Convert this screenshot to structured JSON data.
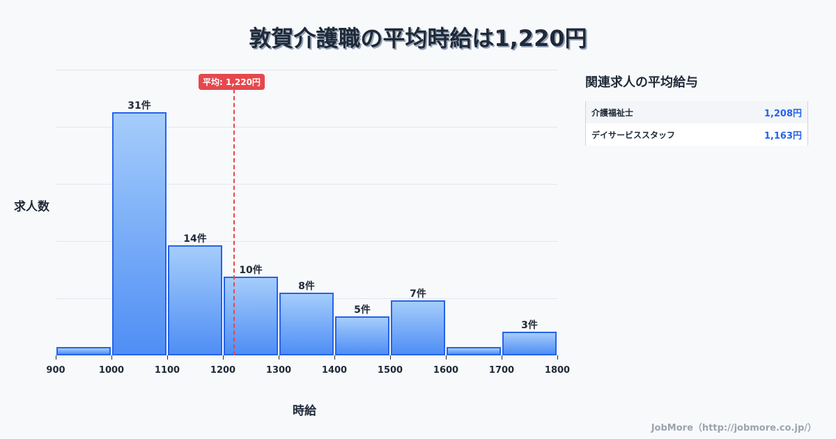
{
  "title": "敦賀介護職の平均時給は1,220円",
  "average_badge": "平均: 1,220円",
  "axis": {
    "ylabel": "求人数",
    "xlabel": "時給"
  },
  "side_panel": {
    "title": "関連求人の平均給与",
    "rows": [
      {
        "name": "介護福祉士",
        "value": "1,208円"
      },
      {
        "name": "デイサービススタッフ",
        "value": "1,163円"
      }
    ]
  },
  "footer": "JobMore（http://jobmore.co.jp/）",
  "colors": {
    "bar_border": "#2563eb",
    "bar_top": "#a5cdfb",
    "bar_bottom": "#4f8ef5",
    "average_line": "#e5484d",
    "text": "#1f2937",
    "link_value": "#2563eb"
  },
  "chart_data": {
    "type": "bar",
    "title": "敦賀介護職の平均時給は1,220円",
    "xlabel": "時給",
    "ylabel": "求人数",
    "x_ticks": [
      "900",
      "1000",
      "1100",
      "1200",
      "1300",
      "1400",
      "1500",
      "1600",
      "1700",
      "1800"
    ],
    "categories": [
      "900-1000",
      "1000-1100",
      "1100-1200",
      "1200-1300",
      "1300-1400",
      "1400-1500",
      "1500-1600",
      "1600-1700",
      "1700-1800"
    ],
    "values": [
      0,
      31,
      14,
      10,
      8,
      5,
      7,
      0,
      3
    ],
    "labels": [
      "",
      "31件",
      "14件",
      "10件",
      "8件",
      "5件",
      "7件",
      "",
      "3件"
    ],
    "average": 1220,
    "average_label": "平均: 1,220円",
    "grid": true,
    "xlim": [
      900,
      1800
    ]
  }
}
